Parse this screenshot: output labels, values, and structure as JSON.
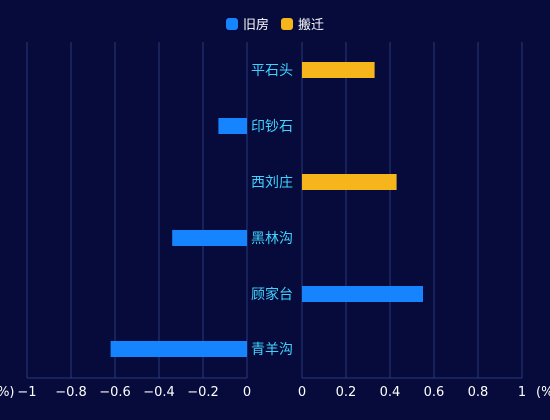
{
  "chart_data": {
    "type": "bar",
    "orientation": "horizontal",
    "layout": "butterfly",
    "categories": [
      "平石头",
      "印钞石",
      "西刘庄",
      "黑林沟",
      "顾家台",
      "青羊沟"
    ],
    "series": [
      {
        "name": "旧房",
        "color": "#1684ff",
        "values": [
          0,
          -0.13,
          0,
          -0.34,
          0.55,
          -0.62
        ]
      },
      {
        "name": "搬迁",
        "color": "#f7b51c",
        "values": [
          0.33,
          0,
          0.43,
          0,
          0,
          0
        ]
      }
    ],
    "left_axis": {
      "ticks": [
        "-1",
        "-0.8",
        "-0.6",
        "-0.4",
        "-0.2",
        "0"
      ],
      "unit_label": "(%)",
      "range": [
        -1,
        0
      ]
    },
    "right_axis": {
      "ticks": [
        "0",
        "0.2",
        "0.4",
        "0.6",
        "0.8",
        "1"
      ],
      "unit_label": "(%",
      "range": [
        0,
        1
      ]
    },
    "grid": true,
    "legend_position": "top-center",
    "colors": {
      "background": "#070b3b",
      "grid": "#2a3a78",
      "axis_text": "#ffffff",
      "category_text": "#3fd3ff"
    }
  }
}
